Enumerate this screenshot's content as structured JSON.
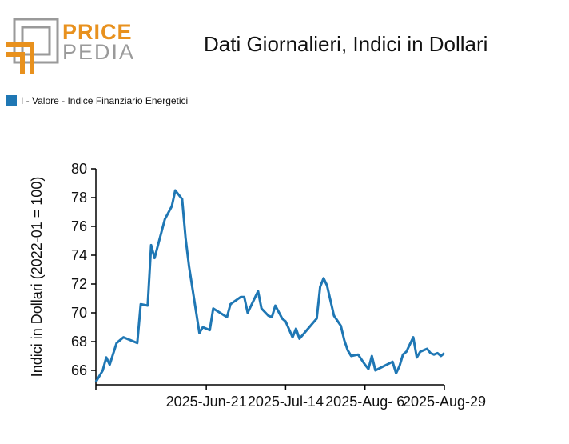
{
  "brand": {
    "word_price": "PRICE",
    "word_pedia": "PEDIA",
    "orange": "#E8911E",
    "gray": "#9A9A9A"
  },
  "chart_data": {
    "type": "line",
    "title": "Dati Giornalieri, Indici in Dollari",
    "xlabel": "",
    "ylabel": "Indici in Dollari (2022-01 = 100)",
    "ylim": [
      65,
      80
    ],
    "yticks": [
      66,
      68,
      70,
      72,
      74,
      76,
      78,
      80
    ],
    "x_tick_labels": [
      "2025-Jun-21",
      "2025-Jul-14",
      "2025-Aug- 6",
      "2025-Aug-29"
    ],
    "legend_position": "top-left",
    "grid": false,
    "series": [
      {
        "name": "I - Valore - Indice Finanziario Energetici",
        "color": "#1F77B4",
        "x": [
          "2025-May-20",
          "2025-May-22",
          "2025-May-23",
          "2025-May-24",
          "2025-May-26",
          "2025-May-28",
          "2025-Jun-01",
          "2025-Jun-02",
          "2025-Jun-04",
          "2025-Jun-05",
          "2025-Jun-06",
          "2025-Jun-09",
          "2025-Jun-11",
          "2025-Jun-12",
          "2025-Jun-14",
          "2025-Jun-15",
          "2025-Jun-16",
          "2025-Jun-19",
          "2025-Jun-20",
          "2025-Jun-22",
          "2025-Jun-23",
          "2025-Jun-27",
          "2025-Jun-28",
          "2025-Jul-01",
          "2025-Jul-02",
          "2025-Jul-03",
          "2025-Jul-06",
          "2025-Jul-07",
          "2025-Jul-09",
          "2025-Jul-10",
          "2025-Jul-11",
          "2025-Jul-13",
          "2025-Jul-14",
          "2025-Jul-16",
          "2025-Jul-17",
          "2025-Jul-18",
          "2025-Jul-23",
          "2025-Jul-24",
          "2025-Jul-25",
          "2025-Jul-26",
          "2025-Jul-28",
          "2025-Jul-30",
          "2025-Jul-31",
          "2025-Aug-01",
          "2025-Aug-02",
          "2025-Aug-04",
          "2025-Aug-06",
          "2025-Aug-07",
          "2025-Aug-08",
          "2025-Aug-09",
          "2025-Aug-14",
          "2025-Aug-15",
          "2025-Aug-16",
          "2025-Aug-17",
          "2025-Aug-18",
          "2025-Aug-20",
          "2025-Aug-21",
          "2025-Aug-22",
          "2025-Aug-24",
          "2025-Aug-25",
          "2025-Aug-26",
          "2025-Aug-27",
          "2025-Aug-28",
          "2025-Aug-29"
        ],
        "values": [
          65.2,
          66.0,
          66.9,
          66.4,
          67.9,
          68.3,
          67.9,
          70.6,
          70.5,
          74.7,
          73.8,
          76.5,
          77.4,
          78.5,
          77.9,
          75.2,
          73.2,
          68.6,
          69.0,
          68.8,
          70.3,
          69.7,
          70.6,
          71.1,
          71.1,
          70.0,
          71.5,
          70.3,
          69.8,
          69.7,
          70.5,
          69.6,
          69.4,
          68.3,
          68.9,
          68.2,
          69.6,
          71.8,
          72.4,
          71.9,
          69.8,
          69.1,
          68.1,
          67.4,
          67.0,
          67.1,
          66.4,
          66.1,
          67.0,
          66.0,
          66.6,
          65.8,
          66.3,
          67.1,
          67.3,
          68.3,
          66.9,
          67.3,
          67.5,
          67.2,
          67.1,
          67.2,
          67.0,
          67.2
        ]
      }
    ]
  }
}
